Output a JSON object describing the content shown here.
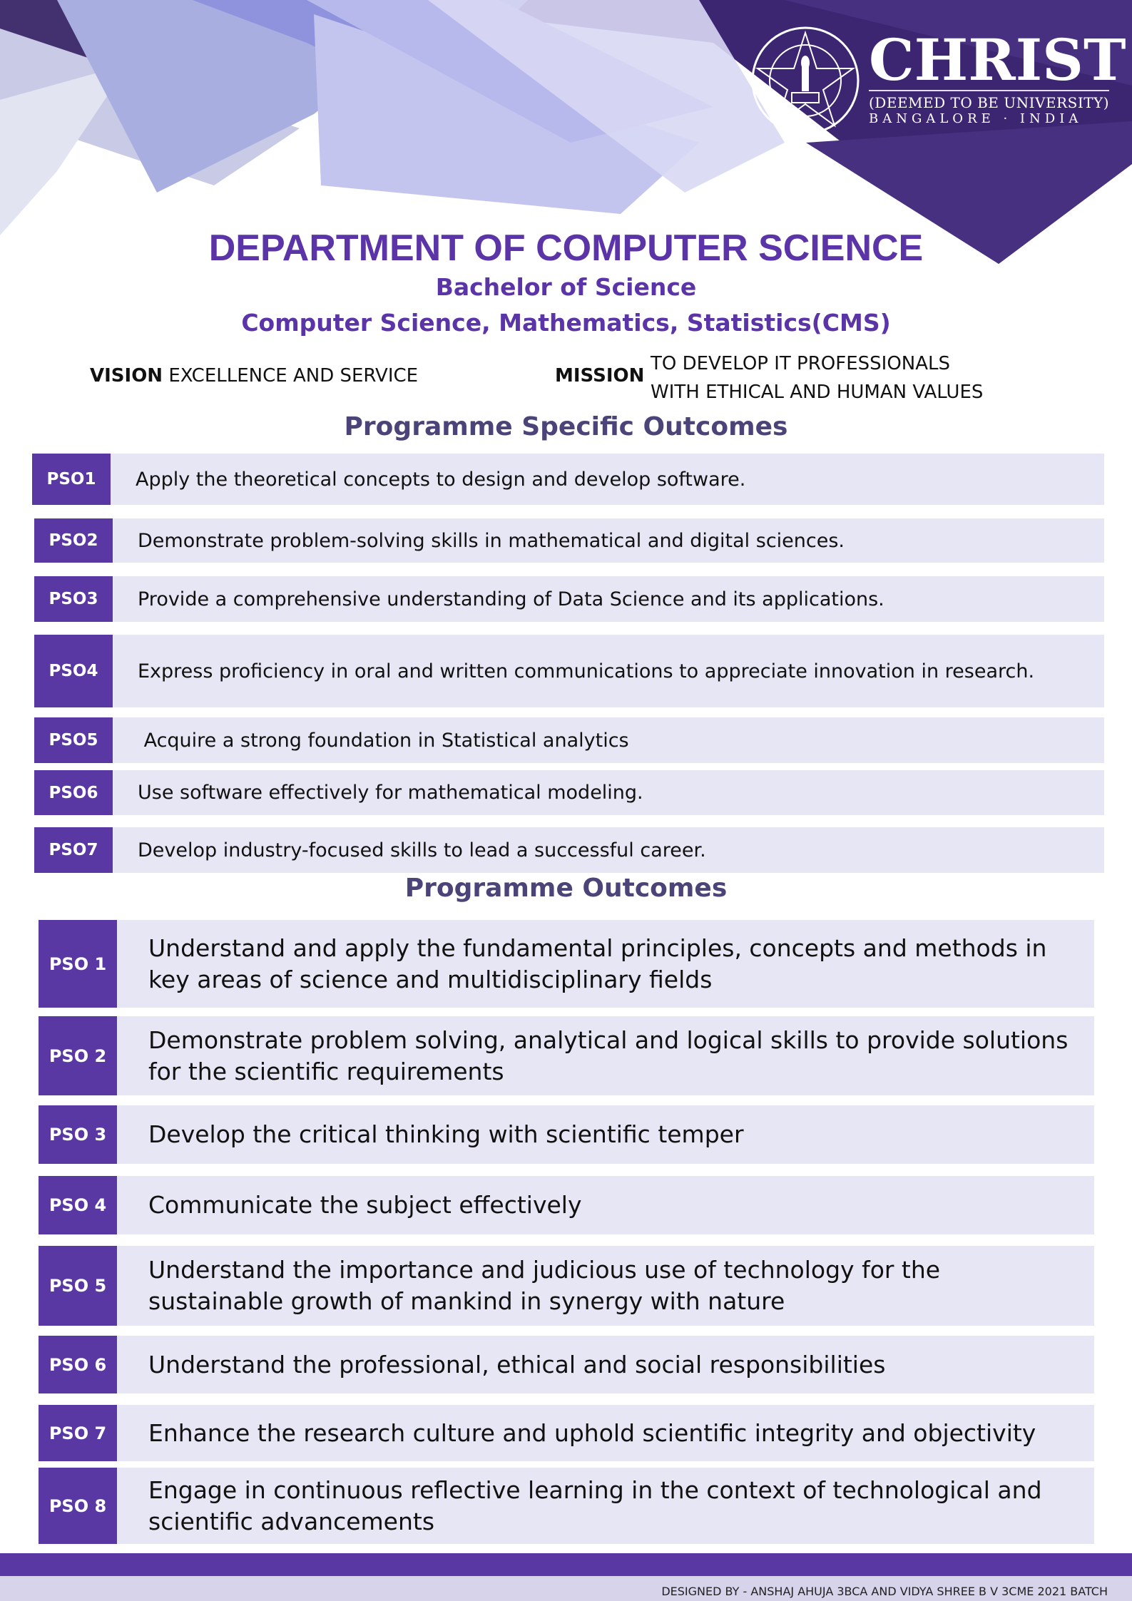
{
  "header": {
    "brand_name": "CHRIST",
    "brand_sub": "(DEEMED TO BE UNIVERSITY)",
    "brand_location": "BANGALORE · INDIA",
    "seal_text": [
      "CHRIST",
      "EXCELLENCE",
      "AND",
      "SERVICE"
    ]
  },
  "title": {
    "department": "DEPARTMENT OF COMPUTER SCIENCE",
    "degree": "Bachelor of Science",
    "programme": "Computer Science, Mathematics, Statistics(CMS)"
  },
  "vision": {
    "label": "VISION",
    "text": "EXCELLENCE AND SERVICE"
  },
  "mission": {
    "label": "MISSION",
    "line1": "TO DEVELOP IT PROFESSIONALS",
    "line2": "WITH ETHICAL AND HUMAN VALUES"
  },
  "pso_section": {
    "heading": "Programme Specific Outcomes",
    "items": [
      {
        "code": "PSO1",
        "text": "Apply the theoretical concepts to design and develop software."
      },
      {
        "code": "PSO2",
        "text": "Demonstrate problem-solving skills in mathematical and digital sciences."
      },
      {
        "code": "PSO3",
        "text": "Provide a comprehensive understanding of Data Science and its applications."
      },
      {
        "code": "PSO4",
        "text": "Express proficiency in oral and written communications to appreciate innovation in research."
      },
      {
        "code": "PSO5",
        "text": " Acquire a strong foundation in Statistical analytics"
      },
      {
        "code": "PSO6",
        "text": "Use software effectively for mathematical modeling."
      },
      {
        "code": "PSO7",
        "text": "Develop industry-focused skills to lead a successful career."
      }
    ]
  },
  "po_section": {
    "heading": "Programme Outcomes",
    "items": [
      {
        "code": "PSO 1",
        "text": "Understand and apply the fundamental principles, concepts and methods in key areas of science and multidisciplinary fields"
      },
      {
        "code": "PSO 2",
        "text": "Demonstrate problem solving, analytical and logical skills to provide solutions for the scientific requirements"
      },
      {
        "code": "PSO 3",
        "text": "Develop the critical thinking with scientific temper"
      },
      {
        "code": "PSO 4",
        "text": "Communicate the subject effectively"
      },
      {
        "code": "PSO 5",
        "text": "Understand the importance and judicious use of technology for the sustainable growth of mankind in synergy with nature"
      },
      {
        "code": "PSO 6",
        "text": "Understand the professional, ethical and social responsibilities"
      },
      {
        "code": "PSO 7",
        "text": "Enhance the research culture and uphold scientific integrity and objectivity"
      },
      {
        "code": "PSO 8",
        "text": "Engage in continuous reflective learning in the context of technological and scientific advancements"
      }
    ]
  },
  "footer": {
    "credit": "DESIGNED BY - ANSHAJ AHUJA 3BCA AND VIDYA SHREE B V 3CME 2021 BATCH"
  },
  "colors": {
    "brand_purple": "#5a38a3",
    "heading_purple": "#5b35a8",
    "row_bg": "#e6e6f4",
    "section_heading": "#4b4478"
  }
}
